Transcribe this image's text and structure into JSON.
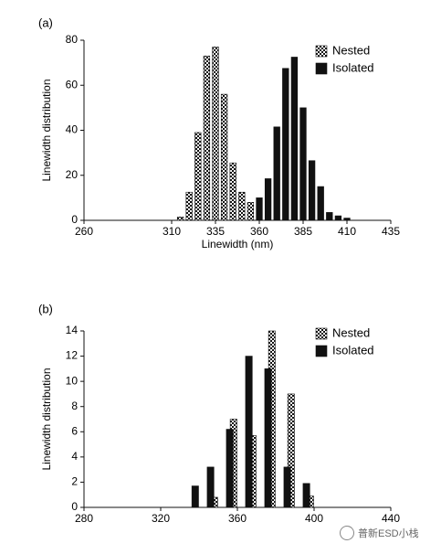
{
  "chart_data": [
    {
      "panel_label": "(a)",
      "type": "bar",
      "xlabel": "Linewidth (nm)",
      "ylabel": "Linewidth distribution",
      "xlim": [
        260,
        435
      ],
      "ylim": [
        0,
        80
      ],
      "xticks": [
        260,
        310,
        335,
        360,
        385,
        410,
        435
      ],
      "yticks": [
        0,
        20,
        40,
        60,
        80
      ],
      "bar_width": 3.5,
      "legend_position": "top-right",
      "series": [
        {
          "name": "Nested",
          "pattern": "checker",
          "x": [
            315,
            320,
            325,
            330,
            335,
            340,
            345,
            350,
            355
          ],
          "values": [
            1.5,
            12.5,
            39,
            73,
            77,
            56,
            25.5,
            12.5,
            8
          ]
        },
        {
          "name": "Isolated",
          "pattern": "solid",
          "x": [
            360,
            365,
            370,
            375,
            380,
            385,
            390,
            395,
            400,
            405,
            410
          ],
          "values": [
            10,
            18.5,
            41.5,
            67.5,
            72.5,
            50,
            26.5,
            15,
            3.5,
            2,
            1
          ]
        }
      ]
    },
    {
      "panel_label": "(b)",
      "type": "bar",
      "xlabel": "",
      "ylabel": "Linewidth distribution",
      "xlim": [
        280,
        440
      ],
      "ylim": [
        0,
        14
      ],
      "xticks": [
        280,
        320,
        360,
        400,
        440
      ],
      "yticks": [
        0,
        2,
        4,
        6,
        8,
        10,
        12,
        14
      ],
      "bar_width": 3.5,
      "legend_position": "top-right",
      "series": [
        {
          "name": "Nested",
          "pattern": "checker",
          "x": [
            348,
            358,
            368,
            378,
            388,
            398
          ],
          "values": [
            0.8,
            7,
            5.7,
            14,
            9,
            0.9
          ]
        },
        {
          "name": "Isolated",
          "pattern": "solid",
          "x": [
            338,
            346,
            356,
            366,
            376,
            386,
            396
          ],
          "values": [
            1.7,
            3.2,
            6.2,
            12,
            11,
            3.2,
            1.9
          ]
        }
      ]
    }
  ],
  "watermark": {
    "text": "普新ESD小栈"
  }
}
